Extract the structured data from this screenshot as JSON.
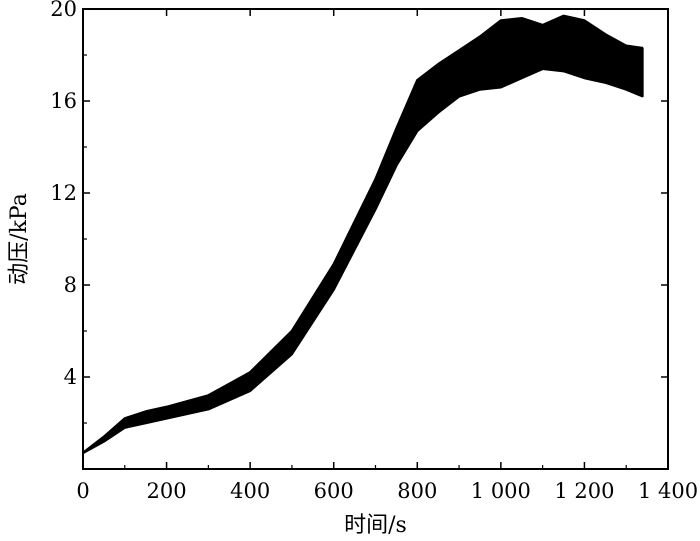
{
  "chart_data": {
    "type": "line",
    "title": "",
    "xlabel": "时间/s",
    "ylabel": "动压/kPa",
    "xlim": [
      0,
      1400
    ],
    "ylim": [
      0,
      20
    ],
    "x_ticks": [
      0,
      200,
      400,
      600,
      800,
      1000,
      1200,
      1400
    ],
    "x_tick_labels": [
      "0",
      "200",
      "400",
      "600",
      "800",
      "1 000",
      "1 200",
      "1 400"
    ],
    "y_ticks": [
      4,
      8,
      12,
      16,
      20
    ],
    "y_tick_labels": [
      "4",
      "8",
      "12",
      "16",
      "20"
    ],
    "grid": false,
    "legend": "none",
    "line_color": "#000000",
    "band": {
      "description_of_series": "ensemble of many overlapping trajectories",
      "x": [
        0,
        50,
        100,
        150,
        200,
        300,
        400,
        500,
        600,
        700,
        750,
        800,
        850,
        900,
        950,
        1000,
        1050,
        1100,
        1150,
        1200,
        1250,
        1300,
        1340
      ],
      "lower": [
        0.7,
        1.2,
        1.8,
        2.0,
        2.2,
        2.6,
        3.4,
        5.0,
        7.8,
        11.3,
        13.2,
        14.7,
        15.5,
        16.2,
        16.5,
        16.6,
        17.0,
        17.4,
        17.3,
        17.0,
        16.8,
        16.5,
        16.2
      ],
      "upper": [
        0.7,
        1.4,
        2.2,
        2.5,
        2.7,
        3.2,
        4.2,
        6.0,
        8.9,
        12.6,
        14.8,
        16.9,
        17.6,
        18.2,
        18.8,
        19.5,
        19.6,
        19.3,
        19.7,
        19.5,
        18.9,
        18.4,
        18.3
      ]
    }
  }
}
